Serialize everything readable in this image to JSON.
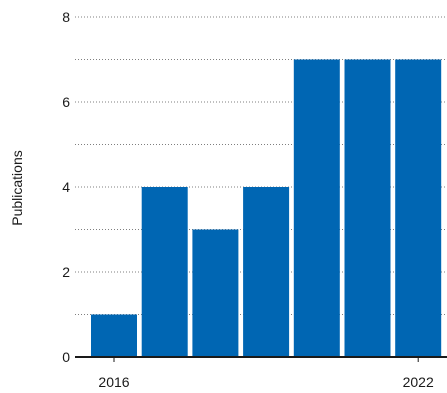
{
  "chart_data": {
    "type": "bar",
    "categories": [
      "2016",
      "2017",
      "2018",
      "2019",
      "2020",
      "2021",
      "2022"
    ],
    "values": [
      1,
      4,
      3,
      4,
      7,
      7,
      7
    ],
    "ylabel": "Publications",
    "ylim": [
      0,
      8
    ],
    "y_ticks": [
      "0",
      "2",
      "4",
      "6",
      "8"
    ],
    "x_tick_labels": [
      {
        "category": "2016",
        "label": "2016"
      },
      {
        "category": "2022",
        "label": "2022"
      }
    ],
    "grid": "horizontal dotted",
    "bar_color": "#0066b3"
  }
}
